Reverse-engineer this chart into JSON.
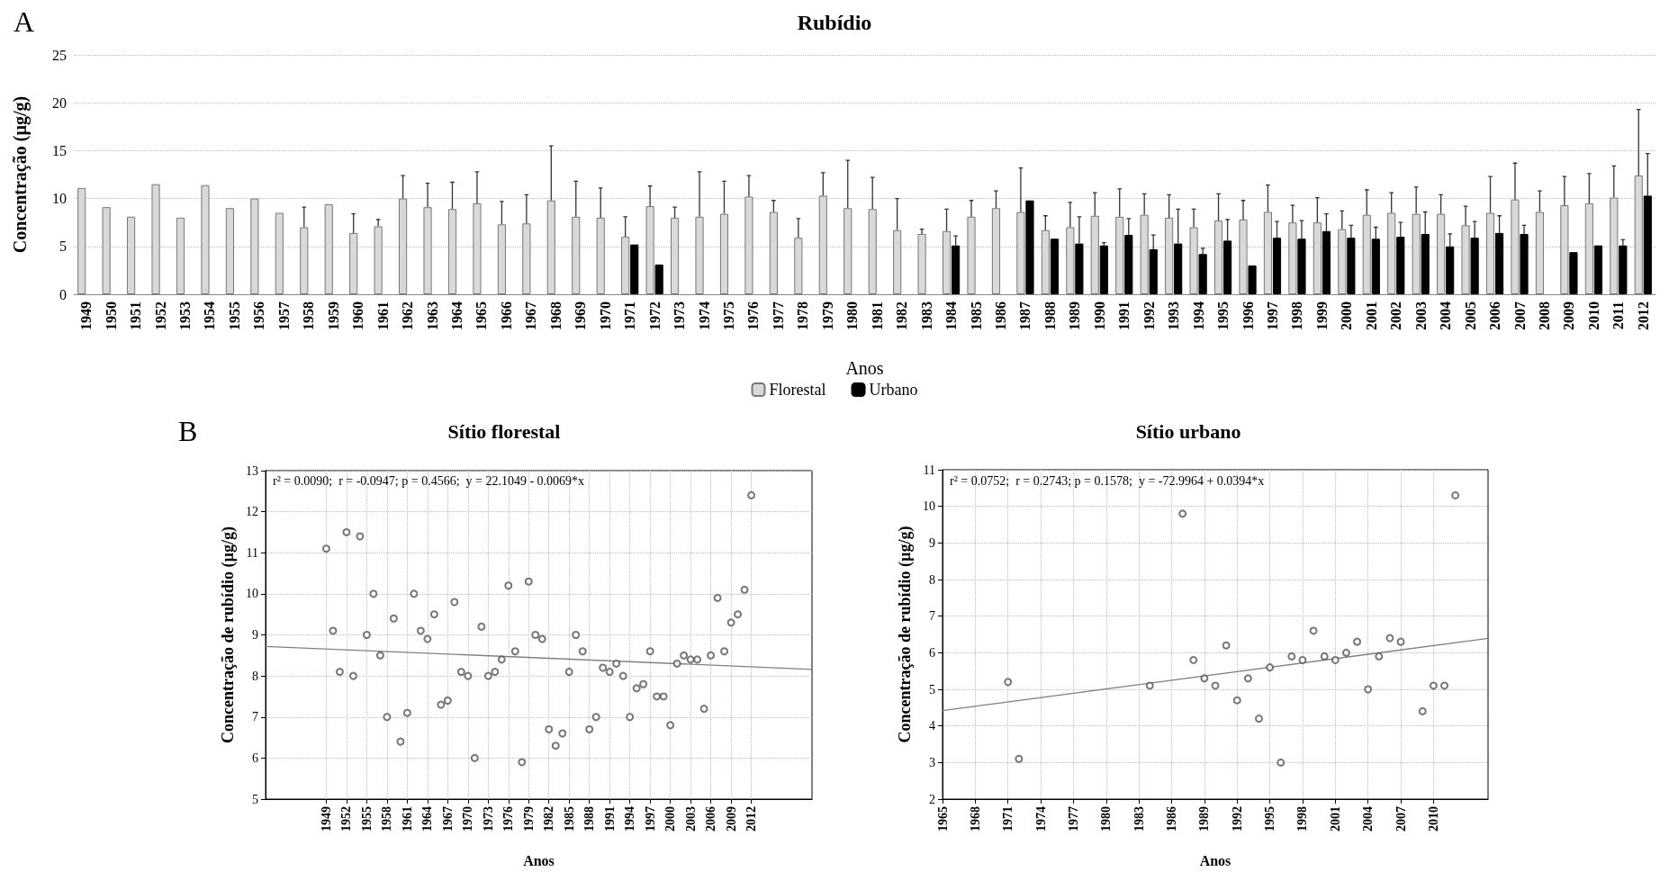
{
  "chart_data": [
    {
      "type": "bar",
      "title": "Rubídio",
      "xlabel": "Anos",
      "ylabel": "Concentração (µg/g)",
      "annotations": [
        "A"
      ],
      "categories": [
        "1949",
        "1950",
        "1951",
        "1952",
        "1953",
        "1954",
        "1955",
        "1956",
        "1957",
        "1958",
        "1959",
        "1960",
        "1961",
        "1962",
        "1963",
        "1964",
        "1965",
        "1966",
        "1967",
        "1968",
        "1969",
        "1970",
        "1971",
        "1972",
        "1973",
        "1974",
        "1975",
        "1976",
        "1977",
        "1978",
        "1979",
        "1980",
        "1981",
        "1982",
        "1983",
        "1984",
        "1985",
        "1986",
        "1987",
        "1988",
        "1989",
        "1990",
        "1991",
        "1992",
        "1993",
        "1994",
        "1995",
        "1996",
        "1997",
        "1998",
        "1999",
        "2000",
        "2001",
        "2002",
        "2003",
        "2004",
        "2005",
        "2006",
        "2007",
        "2008",
        "2009",
        "2010",
        "2011",
        "2012"
      ],
      "series": [
        {
          "name": "Florestal",
          "color": "#d9d9d9",
          "values": [
            11.1,
            9.1,
            8.1,
            11.5,
            8.0,
            11.4,
            9.0,
            10.0,
            8.5,
            7.0,
            9.4,
            6.4,
            7.1,
            10.0,
            9.1,
            8.9,
            9.5,
            7.3,
            7.4,
            9.8,
            8.1,
            8.0,
            6.0,
            9.2,
            8.0,
            8.1,
            8.4,
            10.2,
            8.6,
            5.9,
            10.3,
            9.0,
            8.9,
            6.7,
            6.3,
            6.6,
            8.1,
            9.0,
            8.6,
            6.7,
            7.0,
            8.2,
            8.1,
            8.3,
            8.0,
            7.0,
            7.7,
            7.8,
            8.6,
            7.5,
            7.5,
            6.8,
            8.3,
            8.5,
            8.4,
            8.4,
            7.2,
            8.5,
            9.9,
            8.6,
            9.3,
            9.5,
            10.1,
            12.4
          ],
          "errors": [
            null,
            null,
            null,
            null,
            null,
            null,
            null,
            null,
            null,
            2.1,
            null,
            2.0,
            0.7,
            2.4,
            2.5,
            2.8,
            3.3,
            2.4,
            3.0,
            5.7,
            3.7,
            3.1,
            2.1,
            2.1,
            1.1,
            4.7,
            3.4,
            2.2,
            1.2,
            2.0,
            2.4,
            5.0,
            3.3,
            3.3,
            0.5,
            2.3,
            1.7,
            1.8,
            4.6,
            1.5,
            2.6,
            2.4,
            2.9,
            2.2,
            2.4,
            1.9,
            2.8,
            2.0,
            2.8,
            1.8,
            2.6,
            1.9,
            2.6,
            2.1,
            2.8,
            2.0,
            2.0,
            3.8,
            3.8,
            2.2,
            3.0,
            3.1,
            3.3,
            6.9
          ]
        },
        {
          "name": "Urbano",
          "color": "#000000",
          "values": [
            null,
            null,
            null,
            null,
            null,
            null,
            null,
            null,
            null,
            null,
            null,
            null,
            null,
            null,
            null,
            null,
            null,
            null,
            null,
            null,
            null,
            null,
            5.2,
            3.1,
            null,
            null,
            null,
            null,
            null,
            null,
            null,
            null,
            null,
            null,
            null,
            5.1,
            null,
            null,
            9.8,
            5.8,
            5.3,
            5.1,
            6.2,
            4.7,
            5.3,
            4.2,
            5.6,
            3.0,
            5.9,
            5.8,
            6.6,
            5.9,
            5.8,
            6.0,
            6.3,
            5.0,
            5.9,
            6.4,
            6.3,
            null,
            4.4,
            5.1,
            5.1,
            10.3
          ],
          "errors": [
            null,
            null,
            null,
            null,
            null,
            null,
            null,
            null,
            null,
            null,
            null,
            null,
            null,
            null,
            null,
            null,
            null,
            null,
            null,
            null,
            null,
            null,
            null,
            null,
            null,
            null,
            null,
            null,
            null,
            null,
            null,
            null,
            null,
            null,
            null,
            1.0,
            null,
            null,
            null,
            null,
            2.8,
            0.3,
            1.7,
            1.5,
            3.6,
            0.6,
            2.2,
            null,
            1.7,
            1.9,
            1.8,
            1.3,
            1.2,
            1.5,
            2.3,
            1.3,
            1.7,
            1.8,
            0.9,
            null,
            null,
            null,
            0.6,
            4.4
          ]
        }
      ],
      "ylim": [
        0,
        25
      ],
      "yticks": [
        0,
        5,
        10,
        15,
        20,
        25
      ],
      "grid": "y",
      "legend": "bottom"
    },
    {
      "type": "scatter",
      "title": "Sítio florestal",
      "xlabel": "Anos",
      "ylabel": "Concentração de rubídio (µg/g)",
      "annotations": [
        "B",
        "r² = 0.0090;  r = -0.0947; p = 0.4566;  y = 22.1049 - 0.0069*x"
      ],
      "series": [
        {
          "color": "#555555",
          "x": [
            1949,
            1950,
            1951,
            1952,
            1953,
            1954,
            1955,
            1956,
            1957,
            1958,
            1959,
            1960,
            1961,
            1962,
            1963,
            1964,
            1965,
            1966,
            1967,
            1968,
            1969,
            1970,
            1971,
            1972,
            1973,
            1974,
            1975,
            1976,
            1977,
            1978,
            1979,
            1980,
            1981,
            1982,
            1983,
            1984,
            1985,
            1986,
            1987,
            1988,
            1989,
            1990,
            1991,
            1992,
            1993,
            1994,
            1995,
            1996,
            1997,
            1998,
            1999,
            2000,
            2001,
            2002,
            2003,
            2004,
            2005,
            2006,
            2007,
            2008,
            2009,
            2010,
            2011,
            2012
          ],
          "values": [
            11.1,
            9.1,
            8.1,
            11.5,
            8.0,
            11.4,
            9.0,
            10.0,
            8.5,
            7.0,
            9.4,
            6.4,
            7.1,
            10.0,
            9.1,
            8.9,
            9.5,
            7.3,
            7.4,
            9.8,
            8.1,
            8.0,
            6.0,
            9.2,
            8.0,
            8.1,
            8.4,
            10.2,
            8.6,
            5.9,
            10.3,
            9.0,
            8.9,
            6.7,
            6.3,
            6.6,
            8.1,
            9.0,
            8.6,
            6.7,
            7.0,
            8.2,
            8.1,
            8.3,
            8.0,
            7.0,
            7.7,
            7.8,
            8.6,
            7.5,
            7.5,
            6.8,
            8.3,
            8.5,
            8.4,
            8.4,
            7.2,
            8.5,
            9.9,
            8.6,
            9.3,
            9.5,
            10.1,
            12.4
          ]
        },
        {
          "type": "line",
          "marker": "none",
          "color": "#808080",
          "x": [
            1940,
            2021
          ],
          "values": [
            8.72,
            8.16
          ]
        }
      ],
      "xlim": [
        1940,
        2021
      ],
      "xticks": [
        1949,
        1952,
        1955,
        1958,
        1961,
        1964,
        1967,
        1970,
        1973,
        1976,
        1979,
        1982,
        1985,
        1988,
        1991,
        1994,
        1997,
        2000,
        2003,
        2006,
        2009,
        2012
      ],
      "ylim": [
        5,
        13
      ],
      "yticks": [
        5,
        6,
        7,
        8,
        9,
        10,
        11,
        12,
        13
      ],
      "grid": true,
      "marker": "circle"
    },
    {
      "type": "scatter",
      "title": "Sítio urbano",
      "xlabel": "Anos",
      "ylabel": "Concentração de rubídio (µg/g)",
      "annotations": [
        "r² = 0.0752;  r = 0.2743; p = 0.1578;  y = -72.9964 + 0.0394*x"
      ],
      "series": [
        {
          "color": "#555555",
          "x": [
            1971,
            1972,
            1984,
            1987,
            1988,
            1989,
            1990,
            1991,
            1992,
            1993,
            1994,
            1995,
            1996,
            1997,
            1998,
            1999,
            2000,
            2001,
            2002,
            2003,
            2004,
            2005,
            2006,
            2007,
            2009,
            2010,
            2011,
            2012
          ],
          "values": [
            5.2,
            3.1,
            5.1,
            9.8,
            5.8,
            5.3,
            5.1,
            6.2,
            4.7,
            5.3,
            4.2,
            5.6,
            3.0,
            5.9,
            5.8,
            6.6,
            5.9,
            5.8,
            6.0,
            6.3,
            5.0,
            5.9,
            6.4,
            6.3,
            4.4,
            5.1,
            5.1,
            10.3
          ]
        },
        {
          "type": "line",
          "marker": "none",
          "color": "#808080",
          "x": [
            1965,
            2015
          ],
          "values": [
            4.42,
            6.39
          ]
        }
      ],
      "xlim": [
        1965,
        2015
      ],
      "xticks": [
        1965,
        1968,
        1971,
        1974,
        1977,
        1980,
        1983,
        1986,
        1989,
        1992,
        1995,
        1998,
        2001,
        2004,
        2007,
        2010
      ],
      "ylim": [
        2,
        11
      ],
      "yticks": [
        2,
        3,
        4,
        5,
        6,
        7,
        8,
        9,
        10,
        11
      ],
      "grid": true,
      "marker": "circle"
    }
  ]
}
